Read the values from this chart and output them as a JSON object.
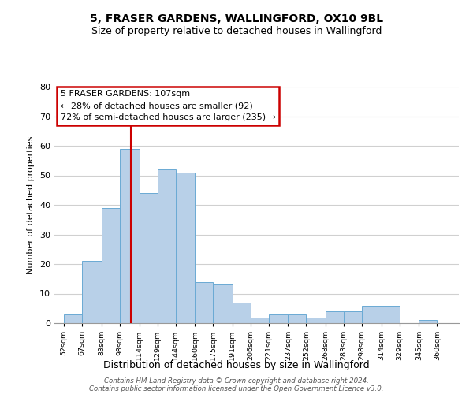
{
  "title_line1": "5, FRASER GARDENS, WALLINGFORD, OX10 9BL",
  "title_line2": "Size of property relative to detached houses in Wallingford",
  "xlabel": "Distribution of detached houses by size in Wallingford",
  "ylabel": "Number of detached properties",
  "bar_labels": [
    "52sqm",
    "67sqm",
    "83sqm",
    "98sqm",
    "114sqm",
    "129sqm",
    "144sqm",
    "160sqm",
    "175sqm",
    "191sqm",
    "206sqm",
    "221sqm",
    "237sqm",
    "252sqm",
    "268sqm",
    "283sqm",
    "298sqm",
    "314sqm",
    "329sqm",
    "345sqm",
    "360sqm"
  ],
  "bar_values": [
    3,
    21,
    39,
    59,
    44,
    52,
    51,
    14,
    13,
    7,
    2,
    3,
    3,
    2,
    4,
    4,
    6,
    6,
    0,
    1,
    0
  ],
  "bin_starts": [
    52,
    67,
    83,
    98,
    114,
    129,
    144,
    160,
    175,
    191,
    206,
    221,
    237,
    252,
    268,
    283,
    298,
    314,
    329,
    345,
    360
  ],
  "bar_color": "#b8d0e8",
  "bar_edge_color": "#6aaad4",
  "marker_value": 107,
  "marker_color": "#cc0000",
  "annotation_text": "5 FRASER GARDENS: 107sqm\n← 28% of detached houses are smaller (92)\n72% of semi-detached houses are larger (235) →",
  "annotation_box_color": "#ffffff",
  "annotation_box_edge": "#cc0000",
  "ylim": [
    0,
    80
  ],
  "yticks": [
    0,
    10,
    20,
    30,
    40,
    50,
    60,
    70,
    80
  ],
  "footer_line1": "Contains HM Land Registry data © Crown copyright and database right 2024.",
  "footer_line2": "Contains public sector information licensed under the Open Government Licence v3.0.",
  "bg_color": "#ffffff",
  "grid_color": "#d0d0d0",
  "xlim_min": 44,
  "xlim_max": 378
}
